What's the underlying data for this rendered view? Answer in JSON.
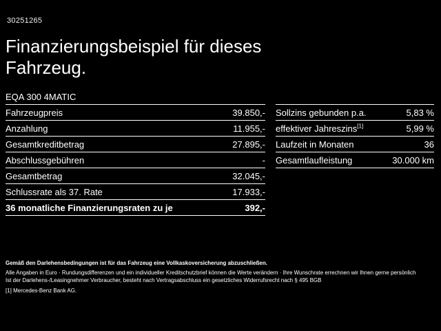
{
  "page": {
    "vehicle_id": "30251265",
    "title_line1": "Finanzierungsbeispiel für dieses",
    "title_line2": "Fahrzeug.",
    "model": "EQA 300 4MATIC"
  },
  "financing_table": {
    "rows": [
      {
        "label": "Fahrzeugpreis",
        "value": "39.850,-"
      },
      {
        "label": "Anzahlung",
        "value": "11.955,-"
      },
      {
        "label": "Gesamtkreditbetrag",
        "value": "27.895,-"
      },
      {
        "label": "Abschlussgebühren",
        "value": "-"
      },
      {
        "label": "Gesamtbetrag",
        "value": "32.045,-"
      },
      {
        "label": "Schlussrate als 37. Rate",
        "value": "17.933,-"
      },
      {
        "label": "36 monatliche Finanzierungsraten zu je",
        "value": "392,-"
      }
    ]
  },
  "conditions_table": {
    "rows": [
      {
        "label": "Sollzins gebunden p.a.",
        "value": "5,83 %"
      },
      {
        "label": "effektiver Jahreszins",
        "sup": "[1]",
        "value": "5,99 %"
      },
      {
        "label": "Laufzeit in Monaten",
        "value": "36"
      },
      {
        "label": "Gesamtlaufleistung",
        "value": "30.000 km"
      }
    ]
  },
  "footnotes": {
    "line1": "Gemäß den Darlehensbedingungen ist für das Fahrzeug eine Vollkaskoversicherung abzuschließen.",
    "line2": "Alle Angaben in Euro · Rundungsdifferenzen und ein individueller Kreditschutzbrief können die Werte verändern · Ihre Wunschrate errechnen wir Ihnen gerne persönlich",
    "line3": "Ist der Darlehens-/Leasingnehmer Verbraucher, besteht nach Vertragsabschluss ein gesetzliches Widerrufsrecht nach § 495 BGB",
    "line4": "[1] Mercedes-Benz Bank AG."
  },
  "colors": {
    "background": "#000000",
    "text": "#ffffff"
  }
}
